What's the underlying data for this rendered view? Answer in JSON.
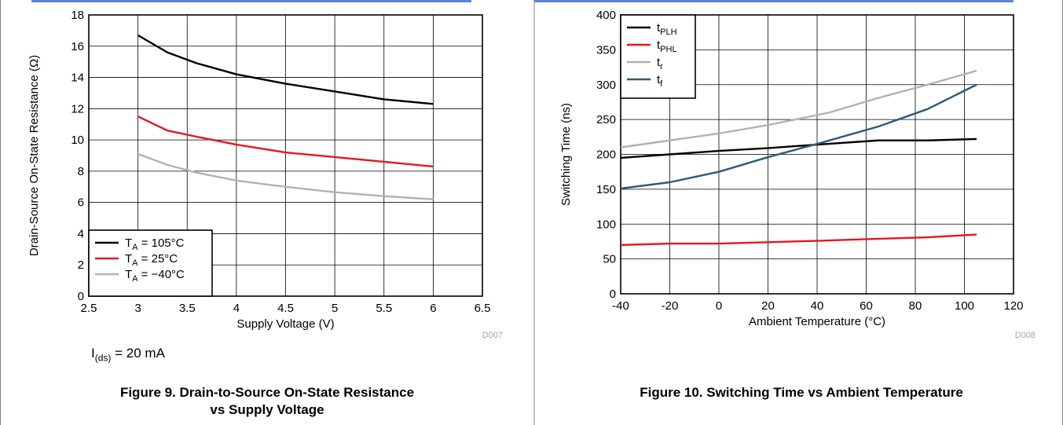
{
  "colors": {
    "black": "#000000",
    "red": "#e8171c",
    "gray": "#b2b2b2",
    "steel": "#2c5b78",
    "frame": "#7f7f7f",
    "code": "#a6a6a6"
  },
  "figures": {
    "fig9": {
      "caption_line1": "Figure 9. Drain-to-Source On-State Resistance",
      "caption_line2": "vs Supply Voltage",
      "condition_prefix": "I",
      "condition_sub": "(ds)",
      "condition_suffix": " = 20 mA",
      "code": "D007"
    },
    "fig10": {
      "caption": "Figure 10. Switching Time vs Ambient Temperature",
      "code": "D008"
    }
  },
  "chart_data": [
    {
      "type": "line",
      "title": "",
      "xlabel": "Supply Voltage (V)",
      "ylabel": "Drain-Source On-State Resistance (Ω)",
      "xlim": [
        2.5,
        6.5
      ],
      "ylim": [
        0,
        18
      ],
      "xticks": [
        "2.5",
        "3",
        "3.5",
        "4",
        "4.5",
        "5",
        "5.5",
        "6",
        "6.5"
      ],
      "yticks": [
        "0",
        "2",
        "4",
        "6",
        "8",
        "10",
        "12",
        "14",
        "16",
        "18"
      ],
      "grid": true,
      "legend_position": "bottom-left",
      "series": [
        {
          "name": "TA = 105°C",
          "label_main": "T",
          "label_sub": "A",
          "label_rest": " = 105°C",
          "color": "#000000",
          "x": [
            3,
            3.3,
            3.6,
            4,
            4.5,
            5,
            5.5,
            6
          ],
          "y": [
            16.7,
            15.6,
            14.9,
            14.2,
            13.6,
            13.1,
            12.6,
            12.3
          ]
        },
        {
          "name": "TA = 25°C",
          "label_main": "T",
          "label_sub": "A",
          "label_rest": " = 25°C",
          "color": "#e8171c",
          "x": [
            3,
            3.3,
            3.6,
            4,
            4.5,
            5,
            5.5,
            6
          ],
          "y": [
            11.5,
            10.6,
            10.2,
            9.7,
            9.2,
            8.9,
            8.6,
            8.3
          ]
        },
        {
          "name": "TA = −40°C",
          "label_main": "T",
          "label_sub": "A",
          "label_rest": " = −40°C",
          "color": "#b2b2b2",
          "x": [
            3,
            3.3,
            3.6,
            4,
            4.5,
            5,
            5.5,
            6
          ],
          "y": [
            9.1,
            8.4,
            7.9,
            7.4,
            7.0,
            6.65,
            6.4,
            6.2
          ]
        }
      ]
    },
    {
      "type": "line",
      "title": "",
      "xlabel": "Ambient Temperature (°C)",
      "ylabel": "Switching Time (ns)",
      "xlim": [
        -40,
        120
      ],
      "ylim": [
        0,
        400
      ],
      "xticks": [
        "-40",
        "-20",
        "0",
        "20",
        "40",
        "60",
        "80",
        "100",
        "120"
      ],
      "yticks": [
        "0",
        "50",
        "100",
        "150",
        "200",
        "250",
        "300",
        "350",
        "400"
      ],
      "grid": true,
      "legend_position": "top-left",
      "series": [
        {
          "name": "tPLH",
          "label_main": "t",
          "label_sub": "PLH",
          "label_rest": "",
          "color": "#000000",
          "x": [
            -40,
            -20,
            0,
            20,
            40,
            65,
            85,
            105
          ],
          "y": [
            195,
            200,
            205,
            209,
            214,
            220,
            220,
            222
          ]
        },
        {
          "name": "tPHL",
          "label_main": "t",
          "label_sub": "PHL",
          "label_rest": "",
          "color": "#e8171c",
          "x": [
            -40,
            -20,
            0,
            20,
            40,
            65,
            85,
            105
          ],
          "y": [
            70,
            72,
            72,
            74,
            76,
            79,
            81,
            85
          ]
        },
        {
          "name": "tr",
          "label_main": "t",
          "label_sub": "r",
          "label_rest": "",
          "color": "#b2b2b2",
          "x": [
            -40,
            -20,
            0,
            20,
            45,
            65,
            85,
            105
          ],
          "y": [
            210,
            220,
            230,
            242,
            260,
            281,
            300,
            320
          ]
        },
        {
          "name": "tf",
          "label_main": "t",
          "label_sub": "f",
          "label_rest": "",
          "color": "#2c5b78",
          "x": [
            -40,
            -20,
            0,
            20,
            40,
            65,
            85,
            105
          ],
          "y": [
            151,
            160,
            175,
            196,
            215,
            240,
            265,
            300
          ]
        }
      ]
    }
  ]
}
